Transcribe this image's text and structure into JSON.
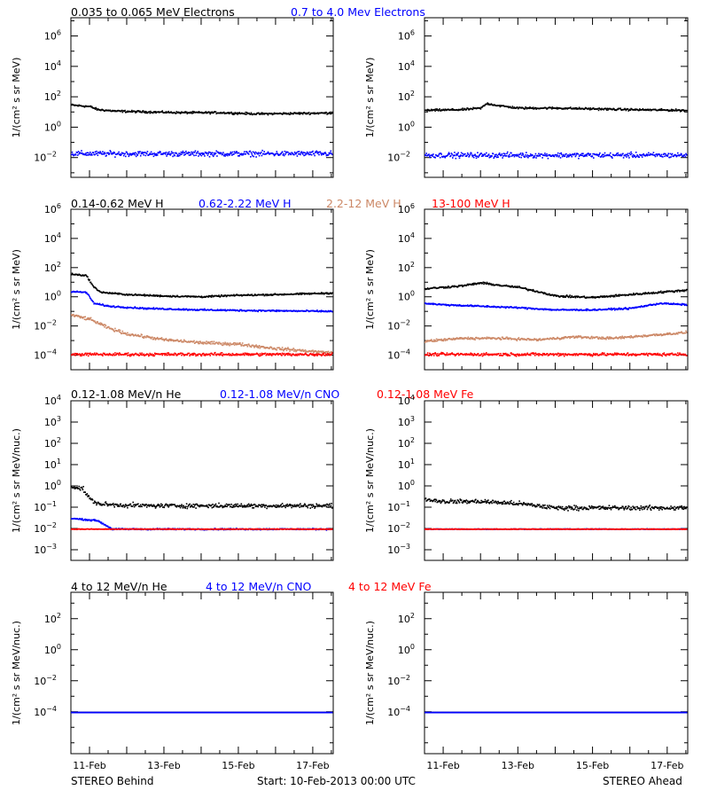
{
  "colors": {
    "black": "#000000",
    "blue": "#0000ff",
    "tan": "#cc8866",
    "red": "#ff0000"
  },
  "footer": {
    "left": "STEREO Behind",
    "center": "Start: 10-Feb-2013 00:00 UTC",
    "right": "STEREO Ahead"
  },
  "x_ticks": [
    "11-Feb",
    "13-Feb",
    "15-Feb",
    "17-Feb"
  ],
  "chart_data": [
    {
      "type": "scatter",
      "title_parts": [
        {
          "text": "0.035 to 0.065 MeV Electrons",
          "color": "black"
        },
        {
          "text": "0.7 to 4.0 Mev Electrons",
          "color": "blue"
        }
      ],
      "ylabel": "1/(cm² s sr MeV)",
      "yscale": "log",
      "ylim_exp": [
        -3.3,
        7.2
      ],
      "yticks_exp": [
        -2,
        0,
        2,
        4,
        6
      ],
      "xlim_days": [
        10.5,
        17.55
      ],
      "panels": {
        "behind": [
          {
            "name": "0.035 to 0.065 MeV Electrons",
            "color": "black",
            "x": [
              10.5,
              11.0,
              11.2,
              11.7,
              12.5,
              13.5,
              14.5,
              15.5,
              16.5,
              17.5
            ],
            "y_log": [
              1.5,
              1.4,
              1.2,
              1.1,
              1.05,
              1.0,
              1.0,
              0.92,
              0.95,
              0.98
            ],
            "scatter": 0.1
          },
          {
            "name": "0.7 to 4.0 Mev Electrons",
            "color": "blue",
            "x": [
              10.5,
              12.0,
              14.0,
              16.0,
              17.5
            ],
            "y_log": [
              -1.7,
              -1.7,
              -1.7,
              -1.7,
              -1.7
            ],
            "scatter": 0.25
          }
        ],
        "ahead": [
          {
            "name": "0.035 to 0.065 MeV Electrons",
            "color": "black",
            "x": [
              10.5,
              11.5,
              12.0,
              12.15,
              12.5,
              13.0,
              14.0,
              15.0,
              16.0,
              17.5
            ],
            "y_log": [
              1.15,
              1.2,
              1.3,
              1.6,
              1.45,
              1.3,
              1.3,
              1.25,
              1.2,
              1.15
            ],
            "scatter": 0.1
          },
          {
            "name": "0.7 to 4.0 Mev Electrons",
            "color": "blue",
            "x": [
              10.5,
              12.0,
              14.0,
              16.0,
              17.5
            ],
            "y_log": [
              -1.8,
              -1.8,
              -1.8,
              -1.8,
              -1.8
            ],
            "scatter": 0.25
          }
        ]
      }
    },
    {
      "type": "scatter",
      "title_parts": [
        {
          "text": "0.14-0.62 MeV H",
          "color": "black"
        },
        {
          "text": "0.62-2.22 MeV H",
          "color": "blue"
        },
        {
          "text": "2.2-12 MeV H",
          "color": "tan"
        },
        {
          "text": "13-100 MeV H",
          "color": "red"
        }
      ],
      "ylabel": "1/(cm² s sr MeV)",
      "yscale": "log",
      "ylim_exp": [
        -5.0,
        6.0
      ],
      "yticks_exp": [
        -4,
        -2,
        0,
        2,
        4,
        6
      ],
      "xlim_days": [
        10.5,
        17.55
      ],
      "panels": {
        "behind": [
          {
            "name": "0.14-0.62 MeV H",
            "color": "black",
            "x": [
              10.5,
              10.9,
              11.1,
              11.3,
              12.0,
              13.0,
              14.0,
              15.0,
              16.0,
              17.5
            ],
            "y_log": [
              1.6,
              1.5,
              0.7,
              0.35,
              0.2,
              0.1,
              0.05,
              0.15,
              0.2,
              0.3
            ],
            "scatter": 0.08
          },
          {
            "name": "0.62-2.22 MeV H",
            "color": "blue",
            "x": [
              10.5,
              10.9,
              11.1,
              11.5,
              12.5,
              14.0,
              15.5,
              17.5
            ],
            "y_log": [
              0.4,
              0.35,
              -0.4,
              -0.6,
              -0.75,
              -0.85,
              -0.9,
              -0.95
            ],
            "scatter": 0.08
          },
          {
            "name": "2.2-12 MeV H",
            "color": "tan",
            "x": [
              10.5,
              11.0,
              11.5,
              12.0,
              13.0,
              14.0,
              15.0,
              16.0,
              17.5
            ],
            "y_log": [
              -1.2,
              -1.5,
              -2.1,
              -2.5,
              -2.9,
              -3.1,
              -3.2,
              -3.5,
              -3.8
            ],
            "scatter": 0.15
          },
          {
            "name": "13-100 MeV H",
            "color": "red",
            "x": [
              10.5,
              17.5
            ],
            "y_log": [
              -3.9,
              -3.9
            ],
            "scatter": 0.15
          }
        ],
        "ahead": [
          {
            "name": "0.14-0.62 MeV H",
            "color": "black",
            "x": [
              10.5,
              11.0,
              11.5,
              12.0,
              12.6,
              13.0,
              13.7,
              14.0,
              15.0,
              16.0,
              17.0,
              17.5
            ],
            "y_log": [
              0.6,
              0.7,
              0.8,
              1.0,
              0.8,
              0.7,
              0.3,
              0.1,
              0.0,
              0.2,
              0.4,
              0.5
            ],
            "scatter": 0.1
          },
          {
            "name": "0.62-2.22 MeV H",
            "color": "blue",
            "x": [
              10.5,
              11.0,
              12.0,
              13.0,
              14.0,
              15.0,
              16.0,
              16.8,
              17.5
            ],
            "y_log": [
              -0.4,
              -0.5,
              -0.6,
              -0.7,
              -0.85,
              -0.85,
              -0.75,
              -0.4,
              -0.5
            ],
            "scatter": 0.08
          },
          {
            "name": "2.2-12 MeV H",
            "color": "tan",
            "x": [
              10.5,
              11.5,
              12.5,
              13.5,
              14.5,
              15.5,
              16.5,
              17.5
            ],
            "y_log": [
              -3.0,
              -2.8,
              -2.8,
              -2.9,
              -2.7,
              -2.8,
              -2.6,
              -2.4
            ],
            "scatter": 0.12
          },
          {
            "name": "13-100 MeV H",
            "color": "red",
            "x": [
              10.5,
              17.5
            ],
            "y_log": [
              -3.9,
              -3.9
            ],
            "scatter": 0.15
          }
        ]
      }
    },
    {
      "type": "scatter",
      "title_parts": [
        {
          "text": "0.12-1.08 MeV/n He",
          "color": "black"
        },
        {
          "text": "0.12-1.08 MeV/n CNO",
          "color": "blue"
        },
        {
          "text": "0.12-1.08 MeV Fe",
          "color": "red"
        }
      ],
      "ylabel": "1/(cm² s sr MeV/nuc.)",
      "yscale": "log",
      "ylim_exp": [
        -3.5,
        4.0
      ],
      "yticks_exp": [
        -3,
        -2,
        -1,
        0,
        1,
        2,
        3,
        4
      ],
      "xlim_days": [
        10.5,
        17.55
      ],
      "panels": {
        "behind": [
          {
            "name": "0.12-1.08 MeV/n He",
            "color": "black",
            "x": [
              10.5,
              10.8,
              11.0,
              11.2,
              11.5,
              12.5,
              14.0,
              16.0,
              17.5
            ],
            "y_log": [
              0.0,
              -0.1,
              -0.6,
              -0.8,
              -0.85,
              -0.9,
              -0.9,
              -0.9,
              -0.9
            ],
            "scatter": 0.15
          },
          {
            "name": "0.12-1.08 MeV/n CNO",
            "color": "blue",
            "x": [
              10.5,
              11.2,
              11.6,
              17.5
            ],
            "y_log": [
              -1.5,
              -1.6,
              -2.0,
              -2.0
            ],
            "scatter": 0.05
          },
          {
            "name": "0.12-1.08 MeV Fe",
            "color": "red",
            "x": [
              10.5,
              17.5
            ],
            "y_log": [
              -2.0,
              -2.0
            ],
            "scatter": 0.02
          }
        ],
        "ahead": [
          {
            "name": "0.12-1.08 MeV/n He",
            "color": "black",
            "x": [
              10.5,
              11.0,
              12.0,
              13.0,
              14.0,
              15.0,
              16.0,
              17.5
            ],
            "y_log": [
              -0.6,
              -0.7,
              -0.7,
              -0.8,
              -1.0,
              -1.0,
              -1.0,
              -1.0
            ],
            "scatter": 0.15
          },
          {
            "name": "0.12-1.08 MeV/n CNO",
            "color": "blue",
            "x": [
              10.5,
              17.5
            ],
            "y_log": [
              -2.0,
              -2.0
            ],
            "scatter": 0.02
          },
          {
            "name": "0.12-1.08 MeV Fe",
            "color": "red",
            "x": [
              10.5,
              17.5
            ],
            "y_log": [
              -2.0,
              -2.0
            ],
            "scatter": 0.02
          }
        ]
      }
    },
    {
      "type": "scatter",
      "title_parts": [
        {
          "text": "4 to 12 MeV/n He",
          "color": "black"
        },
        {
          "text": "4 to 12 MeV/n CNO",
          "color": "blue"
        },
        {
          "text": "4 to 12 MeV Fe",
          "color": "red"
        }
      ],
      "ylabel": "1/(cm² s sr MeV/nuc.)",
      "yscale": "log",
      "ylim_exp": [
        -6.7,
        3.7
      ],
      "yticks_exp": [
        -4,
        -2,
        0,
        2
      ],
      "xlim_days": [
        10.5,
        17.55
      ],
      "panels": {
        "behind": [
          {
            "name": "4 to 12 MeV/n He",
            "color": "black",
            "x": [
              10.5,
              17.5
            ],
            "y_log": [
              -4.0,
              -4.0
            ],
            "scatter": 0.0
          },
          {
            "name": "4 to 12 MeV/n CNO",
            "color": "blue",
            "x": [
              10.5,
              17.5
            ],
            "y_log": [
              -4.0,
              -4.0
            ],
            "scatter": 0.0
          }
        ],
        "ahead": [
          {
            "name": "4 to 12 MeV/n He",
            "color": "black",
            "x": [
              10.5,
              17.5
            ],
            "y_log": [
              -4.0,
              -4.0
            ],
            "scatter": 0.0
          },
          {
            "name": "4 to 12 MeV/n CNO",
            "color": "blue",
            "x": [
              10.5,
              17.5
            ],
            "y_log": [
              -4.0,
              -4.0
            ],
            "scatter": 0.0
          }
        ]
      }
    }
  ]
}
